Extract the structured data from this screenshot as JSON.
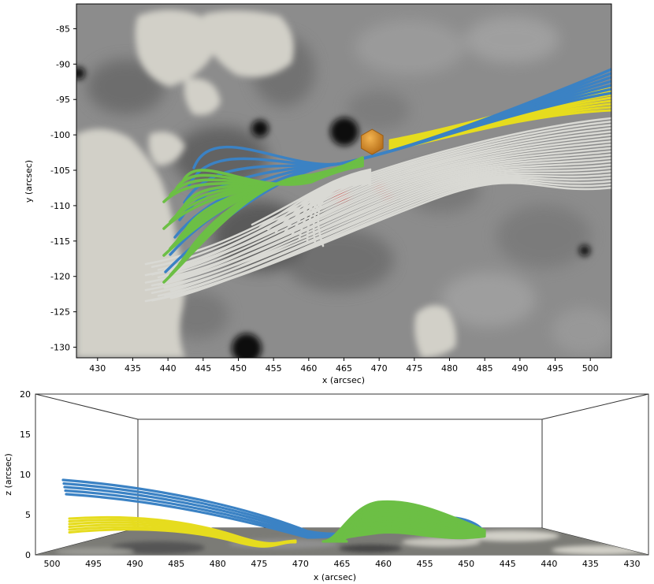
{
  "chart_data": [
    {
      "type": "other",
      "xlabel": "x (arcsec)",
      "ylabel": "y (arcsec)",
      "xlim": [
        427,
        503
      ],
      "ylim": [
        -131.5,
        -81.5
      ],
      "x_ticks": [
        430,
        435,
        440,
        445,
        450,
        455,
        460,
        465,
        470,
        475,
        480,
        485,
        490,
        495,
        500
      ],
      "y_ticks": [
        -85,
        -90,
        -95,
        -100,
        -105,
        -110,
        -115,
        -120,
        -125,
        -130
      ],
      "colors": {
        "background": "#8f8f8f",
        "strong_field": "#d2d0c8",
        "dark_spot": "#0a0a0a",
        "blue_lines": "#3b82c4",
        "green_lines": "#6cbf45",
        "yellow_lines": "#e6dc1e",
        "grey_lines": "#d9d9d4",
        "red_patch": "#d41a1a",
        "orange_marker": "#e0901e"
      },
      "marker": {
        "x": 469,
        "y": -101
      }
    },
    {
      "type": "other",
      "xlabel": "x (arcsec)",
      "ylabel": "z (arcsec)",
      "xlim": [
        502,
        428
      ],
      "ylim": [
        0,
        20
      ],
      "x_ticks": [
        500,
        495,
        490,
        485,
        480,
        475,
        470,
        465,
        460,
        455,
        450,
        445,
        440,
        435,
        430
      ],
      "z_ticks": [
        0,
        5,
        10,
        15,
        20
      ],
      "colors": {
        "box": "#000000",
        "floor": "#7a7a74",
        "blue_lines": "#3b82c4",
        "green_lines": "#6cbf45",
        "yellow_lines": "#e6dc1e"
      }
    }
  ]
}
